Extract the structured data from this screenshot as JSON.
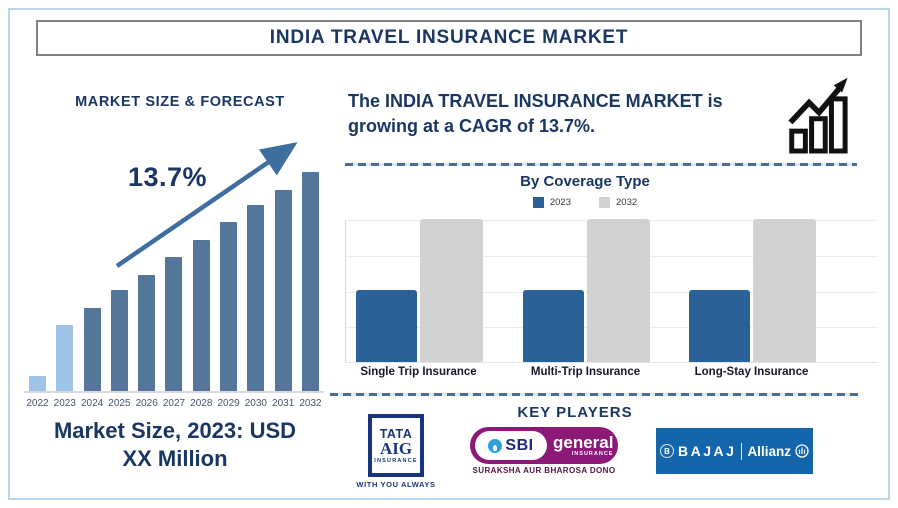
{
  "header": {
    "title": "INDIA TRAVEL INSURANCE MARKET"
  },
  "left_panel": {
    "chart_title": "MARKET SIZE & FORECAST",
    "growth_label": "13.7%",
    "market_size_line1": "Market Size, 2023: USD",
    "market_size_line2": "XX Million"
  },
  "right_panel": {
    "headline_line1": "The INDIA TRAVEL INSURANCE MARKET is",
    "headline_line2": "growing at a CAGR of 13.7%."
  },
  "key_players": {
    "title": "KEY PLAYERS",
    "tata_aig": {
      "line1": "TATA",
      "line2": "AIG",
      "line3": "INSURANCE",
      "tagline": "WITH YOU ALWAYS"
    },
    "sbi_general": {
      "abbr": "SBI",
      "word": "general",
      "sub": "INSURANCE",
      "tagline": "SURAKSHA AUR BHAROSA DONO"
    },
    "bajaj_allianz": {
      "initial": "B",
      "name1": "BAJAJ",
      "name2": "Allianz"
    }
  },
  "chart_data": [
    {
      "id": "market_size_forecast",
      "type": "bar",
      "title": "MARKET SIZE & FORECAST",
      "categories": [
        "2022",
        "2023",
        "2024",
        "2025",
        "2026",
        "2027",
        "2028",
        "2029",
        "2030",
        "2031",
        "2032"
      ],
      "values": [
        7,
        30,
        38,
        46,
        53,
        61,
        69,
        77,
        85,
        92,
        100
      ],
      "value_note": "relative bar heights in % of 2032 bar; actual USD values not shown (Market Size 2023: USD XX Million)",
      "annotation": "13.7%",
      "highlight_years": [
        "2022",
        "2023"
      ],
      "bar_colors": {
        "historic": "#9dc3e6",
        "forecast": "#54769b"
      },
      "xlabel": "",
      "ylabel": "",
      "grid": false
    },
    {
      "id": "by_coverage_type",
      "type": "bar",
      "title": "By Coverage Type",
      "categories": [
        "Single Trip Insurance",
        "Multi-Trip Insurance",
        "Long-Stay Insurance"
      ],
      "series": [
        {
          "name": "2023",
          "color": "#2a6198",
          "values": [
            50,
            50,
            50
          ]
        },
        {
          "name": "2032",
          "color": "#d2d2d2",
          "values": [
            100,
            100,
            100
          ]
        }
      ],
      "ylim": [
        0,
        100
      ],
      "grid": true,
      "legend_position": "top"
    }
  ],
  "colors": {
    "navy_text": "#1a3763",
    "frame_border": "#b9d7e8",
    "trend_arrow": "#3e6d9f",
    "dash_separator": "#4e6d8e",
    "tata_navy": "#16357d",
    "sbi_purple": "#8c1878",
    "sbi_circle_blue": "#2f9fd8",
    "bajaj_blue": "#1565ab"
  }
}
